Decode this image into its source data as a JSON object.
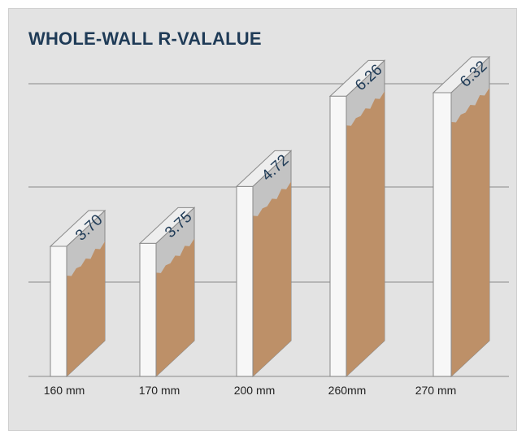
{
  "chart_data": {
    "type": "bar",
    "title": "WHOLE-WALL R-VALALUE",
    "categories": [
      "160 mm",
      "170 mm",
      "200 mm",
      "260mm",
      "270 mm"
    ],
    "values": [
      3.7,
      3.75,
      4.72,
      6.26,
      6.32
    ],
    "value_labels": [
      "3.70",
      "3.75",
      "4.72",
      "6.26",
      "6.32"
    ],
    "grid": true,
    "legend": "none",
    "colors": {
      "insulation": "#bd9068",
      "wall_top": "#c3c3c3",
      "front_face": "#f7f7f7",
      "outline": "#8a8a8a",
      "grid": "#9a9a9a",
      "background": "#e3e3e3",
      "title": "#1f3b57"
    }
  }
}
